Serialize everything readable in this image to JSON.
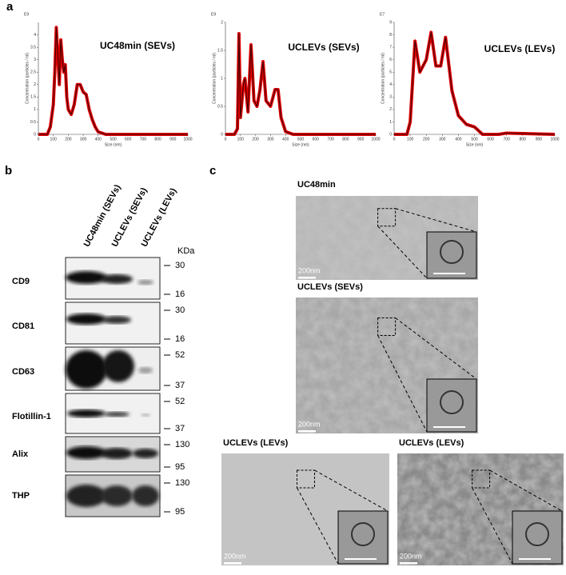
{
  "panel_labels": [
    "a",
    "b",
    "c"
  ],
  "chart_data": [
    {
      "type": "line",
      "title": "UC48min (SEVs)",
      "exponent": "E9",
      "xlabel": "Size (nm)",
      "ylabel": "Concentration (particles / ml)",
      "x": [
        0,
        60,
        80,
        100,
        110,
        120,
        130,
        140,
        150,
        160,
        170,
        180,
        190,
        200,
        220,
        240,
        260,
        280,
        300,
        320,
        340,
        360,
        380,
        400,
        450,
        500,
        600,
        1000
      ],
      "series": [
        {
          "name": "UC48min (SEVs)",
          "color": "#e00000",
          "values": [
            0,
            0,
            0.3,
            1.2,
            2.5,
            4.3,
            3.2,
            2.0,
            3.8,
            3.0,
            2.5,
            2.8,
            1.5,
            1.0,
            0.8,
            1.2,
            2.0,
            2.0,
            1.7,
            1.6,
            1.0,
            0.6,
            0.3,
            0.1,
            0,
            0,
            0,
            0
          ]
        }
      ],
      "xlim": [
        0,
        1000
      ],
      "xticks": [
        0,
        100,
        200,
        300,
        400,
        500,
        600,
        700,
        800,
        900,
        1000
      ],
      "ylim": [
        0,
        4.5
      ],
      "yticks": [
        0,
        0.5,
        1,
        1.5,
        2,
        2.5,
        3,
        3.5,
        4
      ]
    },
    {
      "type": "line",
      "title": "UCLEVs (SEVs)",
      "exponent": "E9",
      "xlabel": "Size (nm)",
      "ylabel": "Concentration (particles / ml)",
      "x": [
        0,
        60,
        80,
        90,
        100,
        120,
        130,
        150,
        170,
        190,
        210,
        230,
        250,
        270,
        300,
        330,
        350,
        370,
        400,
        450,
        600,
        1000
      ],
      "series": [
        {
          "name": "UCLEVs (SEVs)",
          "color": "#e00000",
          "values": [
            0,
            0,
            0.1,
            1.8,
            0.3,
            0.9,
            1.0,
            0.4,
            1.6,
            0.6,
            0.5,
            0.8,
            1.3,
            0.6,
            0.5,
            0.8,
            0.8,
            0.3,
            0.05,
            0,
            0,
            0
          ]
        }
      ],
      "xlim": [
        0,
        1000
      ],
      "xticks": [
        0,
        100,
        200,
        300,
        400,
        500,
        600,
        700,
        800,
        900,
        1000
      ],
      "ylim": [
        0,
        2
      ],
      "yticks": [
        0,
        0.5,
        1,
        1.5,
        2
      ]
    },
    {
      "type": "line",
      "title": "UCLEVs (LEVs)",
      "exponent": "E7",
      "xlabel": "Size (nm)",
      "ylabel": "Concentration (particles / ml)",
      "x": [
        0,
        80,
        100,
        130,
        160,
        200,
        230,
        260,
        290,
        320,
        360,
        400,
        450,
        500,
        550,
        650,
        700,
        1000
      ],
      "series": [
        {
          "name": "UCLEVs (LEVs)",
          "color": "#e00000",
          "values": [
            0,
            0,
            1,
            7.5,
            5,
            6,
            8.2,
            5.5,
            5.5,
            7.8,
            3.5,
            1.5,
            0.8,
            0.6,
            0,
            0,
            0.1,
            0
          ]
        }
      ],
      "xlim": [
        0,
        1000
      ],
      "xticks": [
        0,
        100,
        200,
        300,
        400,
        500,
        600,
        700,
        800,
        900,
        1000
      ],
      "ylim": [
        0,
        9
      ],
      "yticks": [
        0,
        1,
        2,
        3,
        4,
        5,
        6,
        7,
        8,
        9
      ]
    }
  ],
  "western_blot": {
    "lanes": [
      "UC48min (SEVs)",
      "UCLEVs (SEVs)",
      "UCLEVs (LEVs)"
    ],
    "unit": "KDa",
    "rows": [
      {
        "label": "CD9",
        "markers": [
          "30",
          "16"
        ]
      },
      {
        "label": "CD81",
        "markers": [
          "30",
          "16"
        ]
      },
      {
        "label": "CD63",
        "markers": [
          "52",
          "37"
        ]
      },
      {
        "label": "Flotillin-1",
        "markers": [
          "52",
          "37"
        ]
      },
      {
        "label": "Alix",
        "markers": [
          "130",
          "95"
        ]
      },
      {
        "label": "THP",
        "markers": [
          "130",
          "95"
        ]
      }
    ]
  },
  "tem_images": [
    {
      "label": "UC48min",
      "scale_bar": "200nm"
    },
    {
      "label": "UCLEVs (SEVs)",
      "scale_bar": "200nm"
    },
    {
      "label": "UCLEVs (LEVs)",
      "scale_bar": "200nm"
    },
    {
      "label": "UCLEVs (LEVs)",
      "scale_bar": "200nm"
    }
  ]
}
